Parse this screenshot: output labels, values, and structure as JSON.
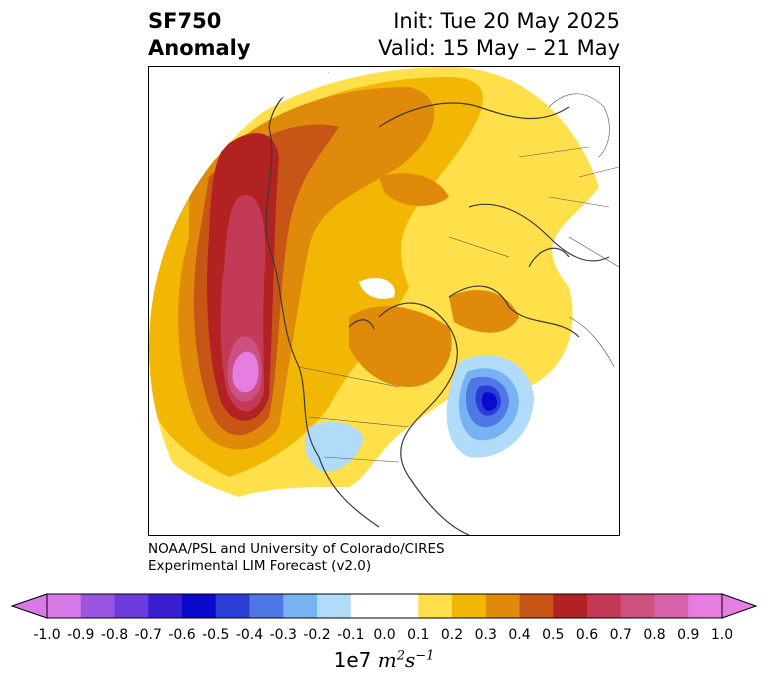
{
  "title": {
    "left_line1": "SF750",
    "left_line2": "Anomaly",
    "right_line1": "Init: Tue 20 May 2025",
    "right_line2": "Valid: 15 May – 21 May"
  },
  "credit": {
    "line1": "NOAA/PSL and University of Colorado/CIRES",
    "line2": "Experimental LIM Forecast (v2.0)"
  },
  "colorbar": {
    "levels": [
      "-1.0",
      "-0.9",
      "-0.8",
      "-0.7",
      "-0.6",
      "-0.5",
      "-0.4",
      "-0.3",
      "-0.2",
      "-0.1",
      "0.0",
      "0.1",
      "0.2",
      "0.3",
      "0.4",
      "0.5",
      "0.6",
      "0.7",
      "0.8",
      "0.9",
      "1.0"
    ],
    "colors": [
      "#d77ae8",
      "#9c55e0",
      "#6c3cdc",
      "#3a1fd0",
      "#0a0acc",
      "#2a3ed6",
      "#4f78e6",
      "#77b3f2",
      "#b0dcfa",
      "#ffffff",
      "#ffffff",
      "#ffe04a",
      "#f2b705",
      "#e08a0c",
      "#c75516",
      "#b22222",
      "#c23a55",
      "#cc5080",
      "#d662aa",
      "#e67de0"
    ],
    "label_prefix": "1e7 ",
    "label_units_main": "m",
    "label_units_sup1": "2",
    "label_units_s": "s",
    "label_units_sup2": "−1"
  },
  "map": {
    "projection": "north-polar-stereographic",
    "field": "SF750 anomaly",
    "features": [
      "positive anomaly over NE Pacific / west of Canada",
      "strong positive centre west of US coast",
      "negative anomaly centre off US east coast",
      "weak negative anomaly over western US"
    ]
  }
}
